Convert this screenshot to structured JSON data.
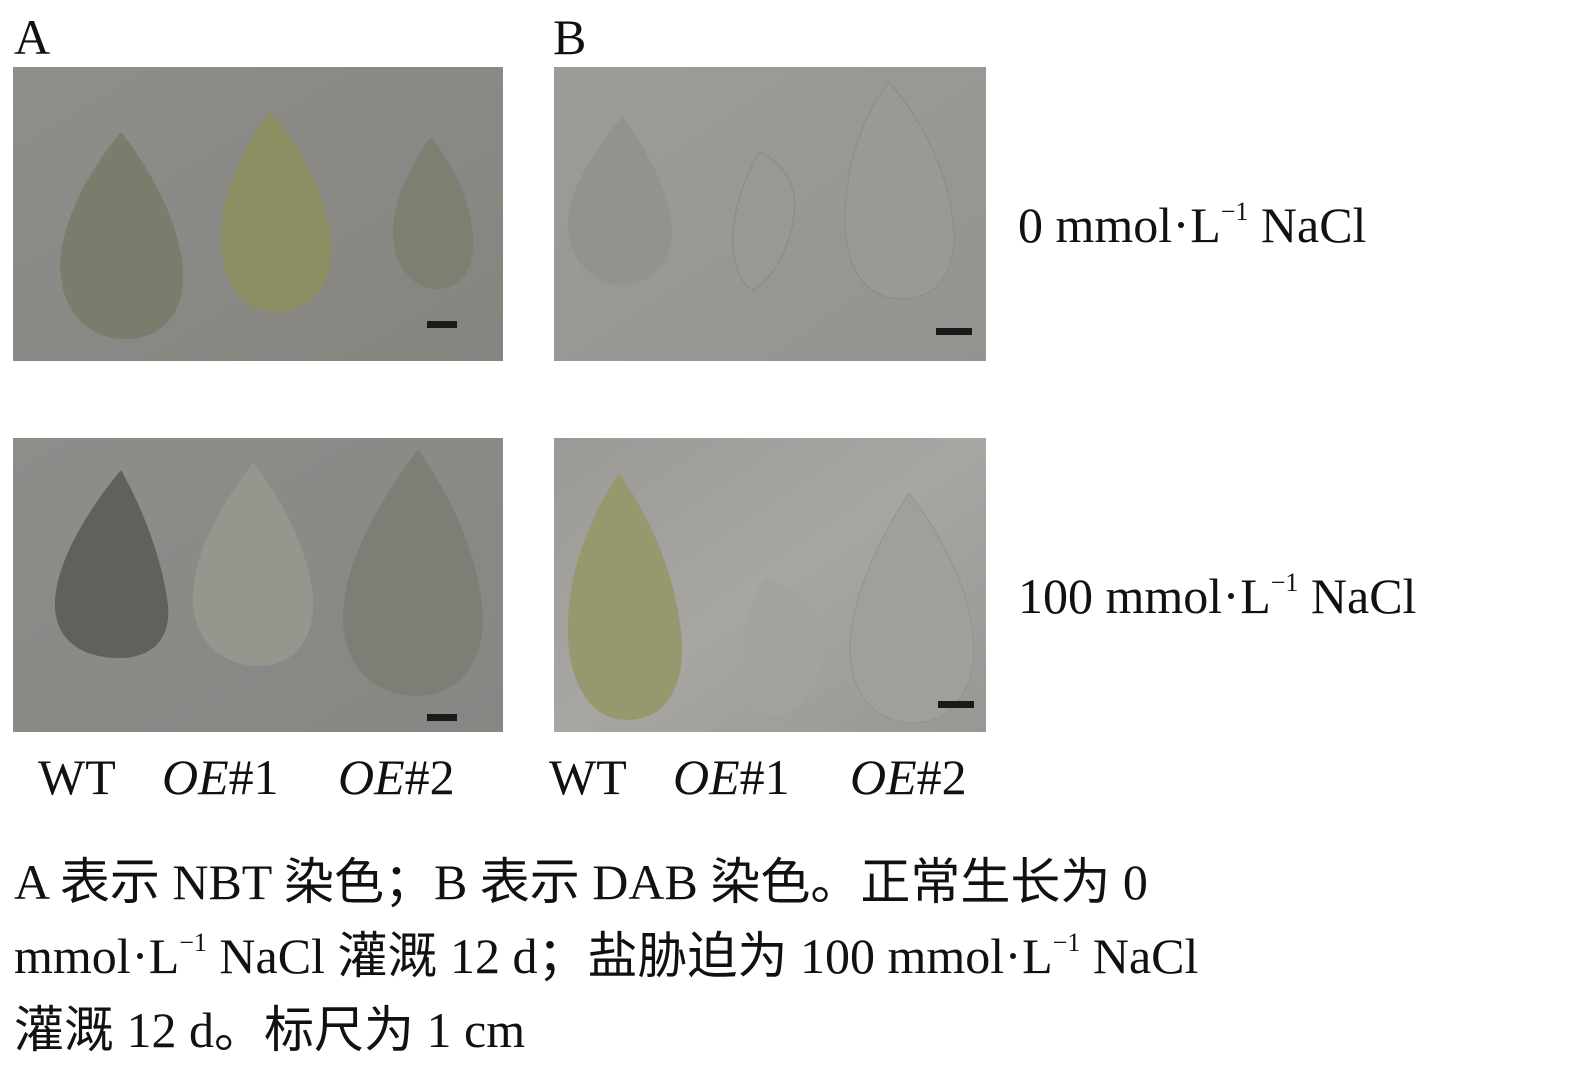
{
  "panels": {
    "a_label": "A",
    "b_label": "B"
  },
  "conditions": {
    "row1": {
      "value": "0 mmol",
      "unit": "L",
      "exp": "−1",
      "salt": "NaCl"
    },
    "row2": {
      "value": "100 mmol",
      "unit": "L",
      "exp": "−1",
      "salt": "NaCl"
    }
  },
  "genotypes": {
    "wt": "WT",
    "oe1_prefix": "OE",
    "oe1_suffix": "#1",
    "oe2_prefix": "OE",
    "oe2_suffix": "#2"
  },
  "caption": {
    "line1": "A 表示 NBT 染色；B 表示 DAB 染色。正常生长为 0",
    "line2_a": "mmol",
    "line2_b": "L",
    "line2_exp": "−1",
    "line2_c": " NaCl 灌溉 12 d；盐胁迫为 100 mmol",
    "line2_d": "L",
    "line2_exp2": "−1",
    "line2_e": " NaCl",
    "line3": "灌溉 12 d。标尺为 1 cm"
  },
  "colors": {
    "photo_background": "#8d8c8a",
    "photo_background_b": "#999896",
    "scale_bar": "#1a1a1a"
  }
}
